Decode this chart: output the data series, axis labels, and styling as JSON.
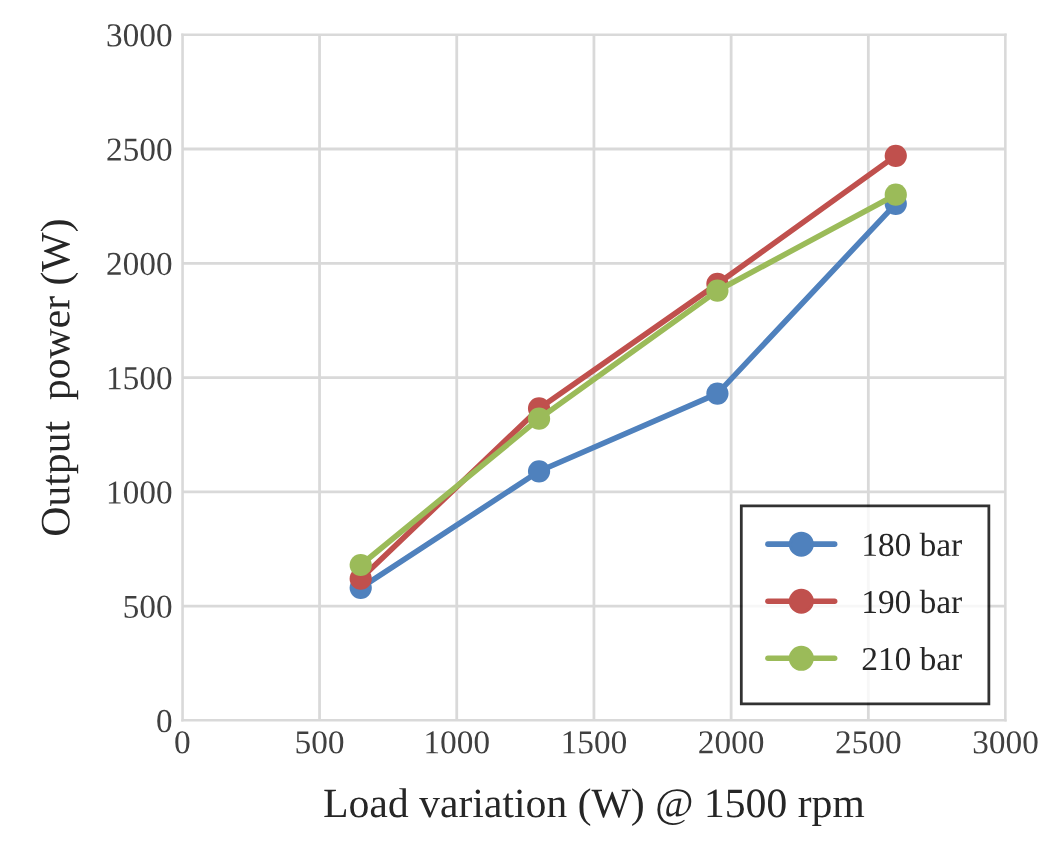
{
  "chart_data": {
    "type": "line",
    "xlabel": "Load variation (W) @ 1500 rpm",
    "ylabel": "Output  power (W)",
    "x": [
      650,
      1300,
      1950,
      2600
    ],
    "series": [
      {
        "name": "180 bar",
        "color": "#4f81bd",
        "values": [
          580,
          1090,
          1430,
          2260
        ]
      },
      {
        "name": "190 bar",
        "color": "#c0504d",
        "values": [
          620,
          1365,
          1910,
          2470
        ]
      },
      {
        "name": "210 bar",
        "color": "#9bbb59",
        "values": [
          680,
          1320,
          1880,
          2300
        ]
      }
    ],
    "xlim": [
      0,
      3000
    ],
    "xticks": [
      0,
      500,
      1000,
      1500,
      2000,
      2500,
      3000
    ],
    "ylim": [
      0,
      3000
    ],
    "yticks": [
      0,
      500,
      1000,
      1500,
      2000,
      2500,
      3000
    ],
    "grid": true,
    "legend": "bottom right",
    "marker": "circle",
    "line_style": "solid"
  }
}
